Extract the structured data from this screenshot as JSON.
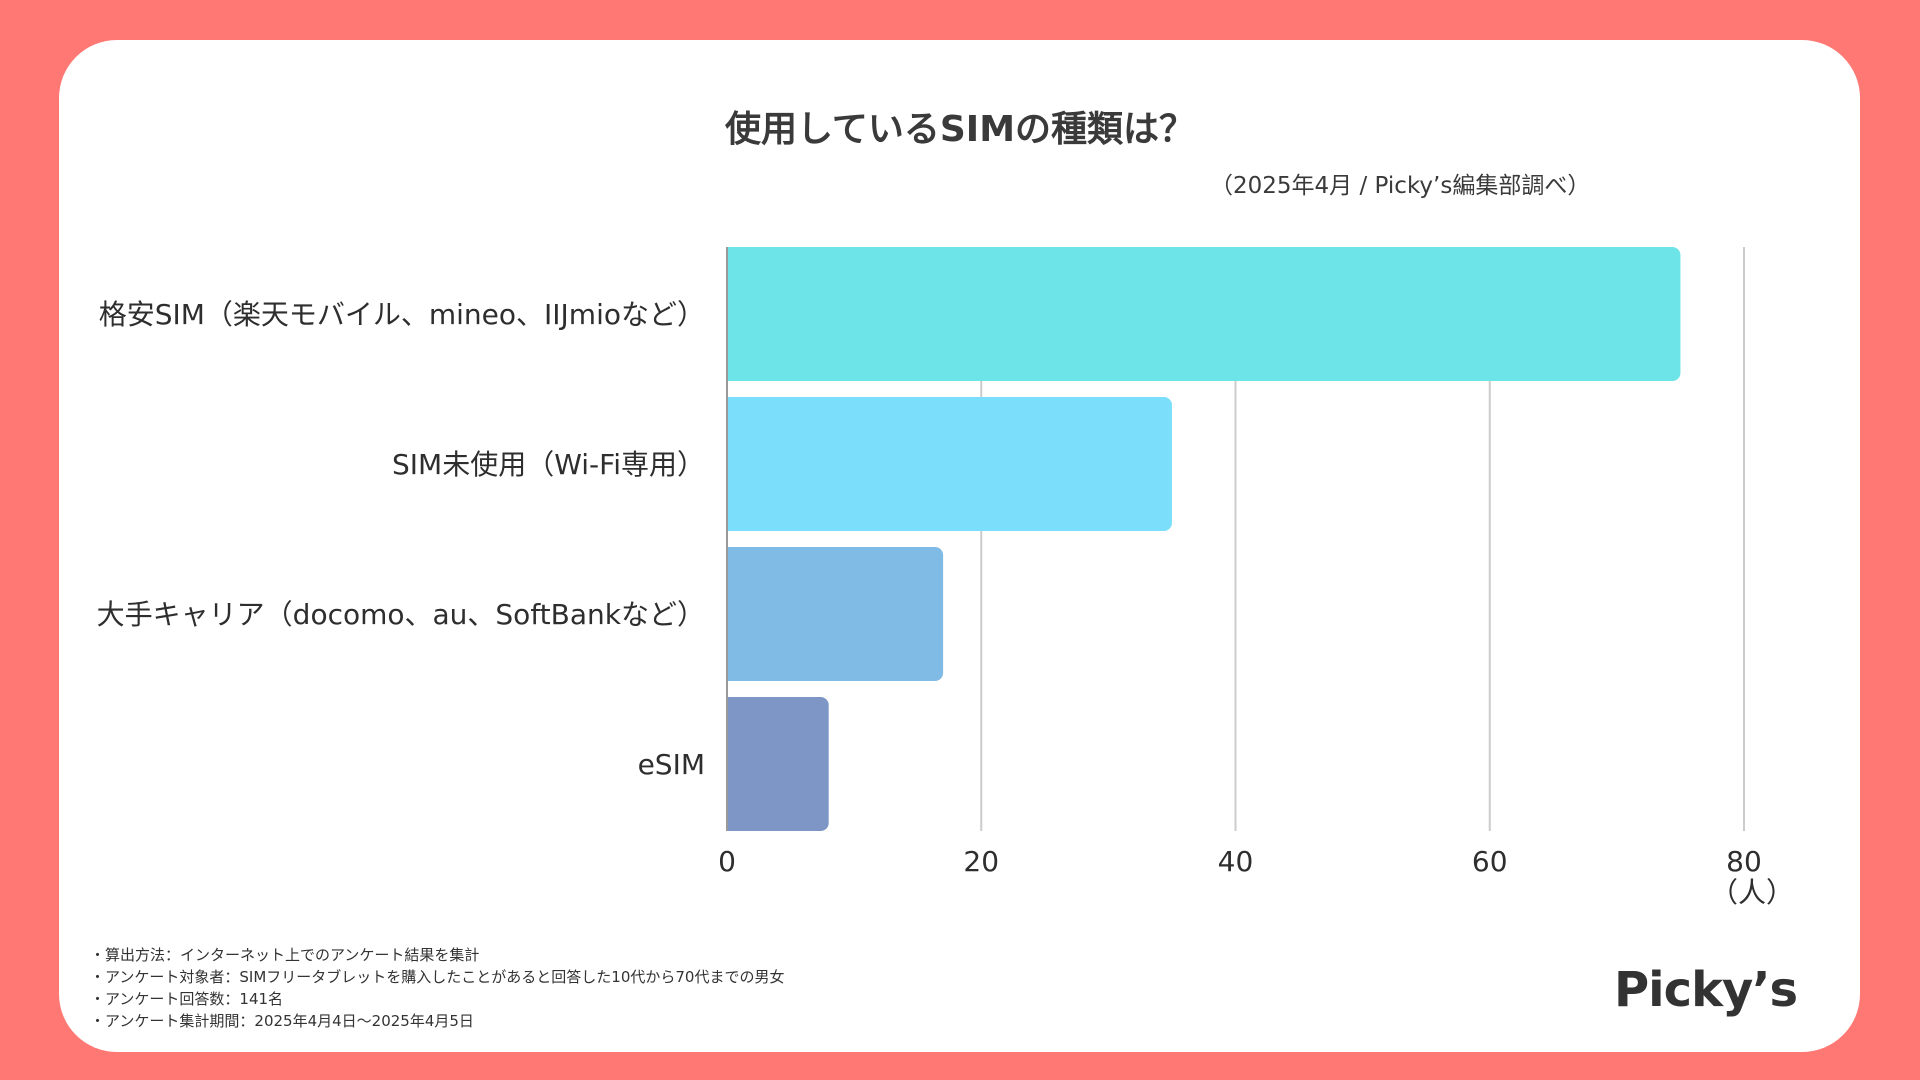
{
  "title": "使用しているSIMの種類は？",
  "source": "（2025年4月 / Picky’s編集部調べ）",
  "colors": {
    "background": "#ff7874",
    "card": "#ffffff",
    "grid": "#cccccc",
    "text": "#333333"
  },
  "chart_data": {
    "type": "bar",
    "orientation": "horizontal",
    "title": "使用しているSIMの種類は？",
    "categories": [
      "格安SIM（楽天モバイル、mineo、IIJmioなど）",
      "SIM未使用（Wi-Fi専用）",
      "大手キャリア（docomo、au、SoftBankなど）",
      "eSIM"
    ],
    "values": [
      75,
      35,
      17,
      8
    ],
    "bar_colors": [
      "#6ce4e8",
      "#7bdffc",
      "#80bbe6",
      "#7e96c5"
    ],
    "xlim": [
      0,
      80
    ],
    "xticks": [
      0,
      20,
      40,
      60,
      80
    ],
    "xlabel": "（人）",
    "grid": true
  },
  "notes": [
    "・算出方法：インターネット上でのアンケート結果を集計",
    "・アンケート対象者：SIMフリータブレットを購入したことがあると回答した10代から70代までの男女",
    "・アンケート回答数：141名",
    "・アンケート集計期間：2025年4月4日〜2025年4月5日"
  ],
  "logo": "Picky’s"
}
